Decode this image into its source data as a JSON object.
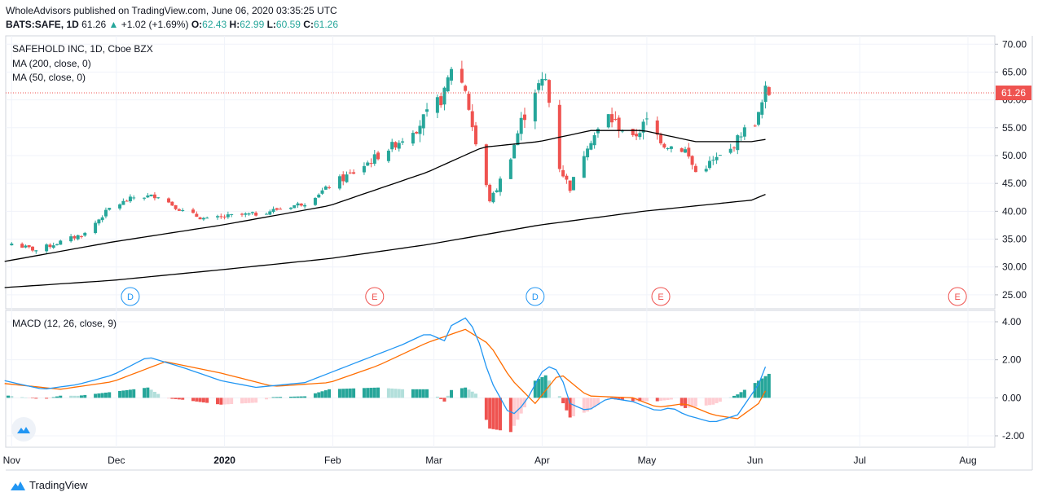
{
  "header": {
    "line1": "WholeAdvisors published on TradingView.com, June 06, 2020 03:35:25 UTC",
    "symbol": "BATS:SAFE, 1D",
    "last": "61.26",
    "change": "+1.02 (+1.69%)",
    "o_label": "O:",
    "o": "62.43",
    "h_label": "H:",
    "h": "62.99",
    "l_label": "L:",
    "l": "60.59",
    "c_label": "C:",
    "c": "61.26"
  },
  "legend": {
    "title": "SAFEHOLD INC, 1D, Cboe BZX",
    "ma200": "MA (200, close, 0)",
    "ma50": "MA (50, close, 0)",
    "macd": "MACD (12, 26, close, 9)"
  },
  "footer": {
    "brand": "TradingView"
  },
  "colors": {
    "up": "#26a69a",
    "down": "#ef5350",
    "histUpLight": "#b2dfdb",
    "histDownLight": "#ffcdd2",
    "macd": "#2196f3",
    "signal": "#ff6d00",
    "ma": "#000000",
    "grid": "#f0f3fa"
  },
  "chart_data": [
    {
      "type": "candlestick",
      "title": "SAFEHOLD INC, 1D, Cboe BZX",
      "y_ticks": [
        "25.00",
        "30.00",
        "35.00",
        "40.00",
        "45.00",
        "50.00",
        "55.00",
        "60.00",
        "65.00",
        "70.00"
      ],
      "ylim": [
        22.5,
        71.5
      ],
      "last_price_label": "61.26",
      "x_ticks": [
        "Nov",
        "Dec",
        "2020",
        "Feb",
        "Mar",
        "Apr",
        "May",
        "Jun",
        "Jul",
        "Aug"
      ],
      "events": [
        {
          "label": "D",
          "date": "2019-12-05"
        },
        {
          "label": "E",
          "date": "2020-02-13"
        },
        {
          "label": "D",
          "date": "2020-03-30"
        },
        {
          "label": "E",
          "date": "2020-05-05"
        },
        {
          "label": "E",
          "date": "2020-07-29"
        }
      ],
      "anchors": [
        [
          "2019-11-01",
          34.2
        ],
        [
          "2019-11-08",
          33.0
        ],
        [
          "2019-11-15",
          34.5
        ],
        [
          "2019-11-22",
          36.0
        ],
        [
          "2019-11-29",
          40.5
        ],
        [
          "2019-12-06",
          42.5
        ],
        [
          "2019-12-13",
          42.8
        ],
        [
          "2019-12-20",
          40.0
        ],
        [
          "2019-12-27",
          38.5
        ],
        [
          "2020-01-03",
          39.2
        ],
        [
          "2020-01-10",
          39.5
        ],
        [
          "2020-01-17",
          40.5
        ],
        [
          "2020-01-24",
          41.5
        ],
        [
          "2020-01-31",
          44.5
        ],
        [
          "2020-02-07",
          47.0
        ],
        [
          "2020-02-14",
          50.0
        ],
        [
          "2020-02-21",
          53.0
        ],
        [
          "2020-02-28",
          57.0
        ],
        [
          "2020-03-04",
          61.0
        ],
        [
          "2020-03-06",
          66.0
        ],
        [
          "2020-03-10",
          62.0
        ],
        [
          "2020-03-13",
          52.0
        ],
        [
          "2020-03-17",
          42.0
        ],
        [
          "2020-03-19",
          44.0
        ],
        [
          "2020-03-23",
          50.0
        ],
        [
          "2020-03-26",
          56.0
        ],
        [
          "2020-03-30",
          62.0
        ],
        [
          "2020-04-02",
          63.5
        ],
        [
          "2020-04-06",
          48.0
        ],
        [
          "2020-04-09",
          44.0
        ],
        [
          "2020-04-14",
          52.0
        ],
        [
          "2020-04-20",
          57.0
        ],
        [
          "2020-04-27",
          53.0
        ],
        [
          "2020-05-01",
          56.0
        ],
        [
          "2020-05-06",
          52.0
        ],
        [
          "2020-05-12",
          51.0
        ],
        [
          "2020-05-15",
          47.0
        ],
        [
          "2020-05-20",
          49.0
        ],
        [
          "2020-05-25",
          51.0
        ],
        [
          "2020-05-28",
          54.0
        ],
        [
          "2020-06-02",
          57.0
        ],
        [
          "2020-06-04",
          61.5
        ],
        [
          "2020-06-05",
          61.26
        ]
      ],
      "ma50": [
        [
          "2019-10-30",
          31.0
        ],
        [
          "2019-11-30",
          34.5
        ],
        [
          "2019-12-31",
          37.5
        ],
        [
          "2020-01-31",
          41.0
        ],
        [
          "2020-02-28",
          47.0
        ],
        [
          "2020-03-15",
          51.5
        ],
        [
          "2020-03-31",
          52.5
        ],
        [
          "2020-04-15",
          54.5
        ],
        [
          "2020-04-30",
          54.5
        ],
        [
          "2020-05-15",
          52.5
        ],
        [
          "2020-05-31",
          52.5
        ],
        [
          "2020-06-05",
          53.0
        ]
      ],
      "ma200": [
        [
          "2019-10-30",
          26.3
        ],
        [
          "2019-11-30",
          27.6
        ],
        [
          "2019-12-31",
          29.5
        ],
        [
          "2020-01-31",
          31.5
        ],
        [
          "2020-02-28",
          34.0
        ],
        [
          "2020-03-31",
          37.5
        ],
        [
          "2020-04-30",
          40.0
        ],
        [
          "2020-05-31",
          42.0
        ],
        [
          "2020-06-05",
          43.3
        ]
      ]
    },
    {
      "type": "line",
      "title": "MACD (12, 26, close, 9)",
      "y_ticks": [
        "-2.00",
        "0.00",
        "2.00",
        "4.00"
      ],
      "ylim": [
        -2.6,
        4.6
      ],
      "series": [
        {
          "name": "MACD",
          "points": [
            [
              "2019-10-30",
              0.9
            ],
            [
              "2019-11-10",
              0.45
            ],
            [
              "2019-11-20",
              0.7
            ],
            [
              "2019-11-30",
              1.2
            ],
            [
              "2019-12-10",
              2.15
            ],
            [
              "2019-12-20",
              1.6
            ],
            [
              "2019-12-31",
              0.9
            ],
            [
              "2020-01-10",
              0.55
            ],
            [
              "2020-01-24",
              0.8
            ],
            [
              "2020-02-07",
              1.8
            ],
            [
              "2020-02-21",
              2.8
            ],
            [
              "2020-02-28",
              3.4
            ],
            [
              "2020-03-04",
              3.0
            ],
            [
              "2020-03-06",
              3.8
            ],
            [
              "2020-03-10",
              4.2
            ],
            [
              "2020-03-13",
              3.5
            ],
            [
              "2020-03-17",
              1.0
            ],
            [
              "2020-03-23",
              -1.0
            ],
            [
              "2020-03-27",
              -0.3
            ],
            [
              "2020-04-02",
              1.7
            ],
            [
              "2020-04-06",
              1.4
            ],
            [
              "2020-04-09",
              -0.3
            ],
            [
              "2020-04-14",
              -0.7
            ],
            [
              "2020-04-20",
              0.0
            ],
            [
              "2020-04-27",
              -0.2
            ],
            [
              "2020-05-04",
              -0.7
            ],
            [
              "2020-05-08",
              -0.5
            ],
            [
              "2020-05-12",
              -0.9
            ],
            [
              "2020-05-20",
              -1.3
            ],
            [
              "2020-05-27",
              -0.9
            ],
            [
              "2020-06-02",
              0.7
            ],
            [
              "2020-06-05",
              2.1
            ]
          ]
        },
        {
          "name": "Signal",
          "points": [
            [
              "2019-10-30",
              0.75
            ],
            [
              "2019-11-15",
              0.45
            ],
            [
              "2019-11-30",
              0.85
            ],
            [
              "2019-12-15",
              1.9
            ],
            [
              "2019-12-31",
              1.3
            ],
            [
              "2020-01-15",
              0.6
            ],
            [
              "2020-01-31",
              0.8
            ],
            [
              "2020-02-14",
              1.7
            ],
            [
              "2020-02-28",
              2.9
            ],
            [
              "2020-03-10",
              3.6
            ],
            [
              "2020-03-17",
              2.8
            ],
            [
              "2020-03-23",
              1.0
            ],
            [
              "2020-03-30",
              -0.3
            ],
            [
              "2020-04-06",
              1.3
            ],
            [
              "2020-04-14",
              0.1
            ],
            [
              "2020-04-27",
              0.0
            ],
            [
              "2020-05-04",
              -0.5
            ],
            [
              "2020-05-12",
              -0.3
            ],
            [
              "2020-05-20",
              -0.9
            ],
            [
              "2020-05-27",
              -1.1
            ],
            [
              "2020-06-02",
              -0.3
            ],
            [
              "2020-06-05",
              0.7
            ]
          ]
        }
      ],
      "histogram": "MACD minus Signal"
    }
  ]
}
